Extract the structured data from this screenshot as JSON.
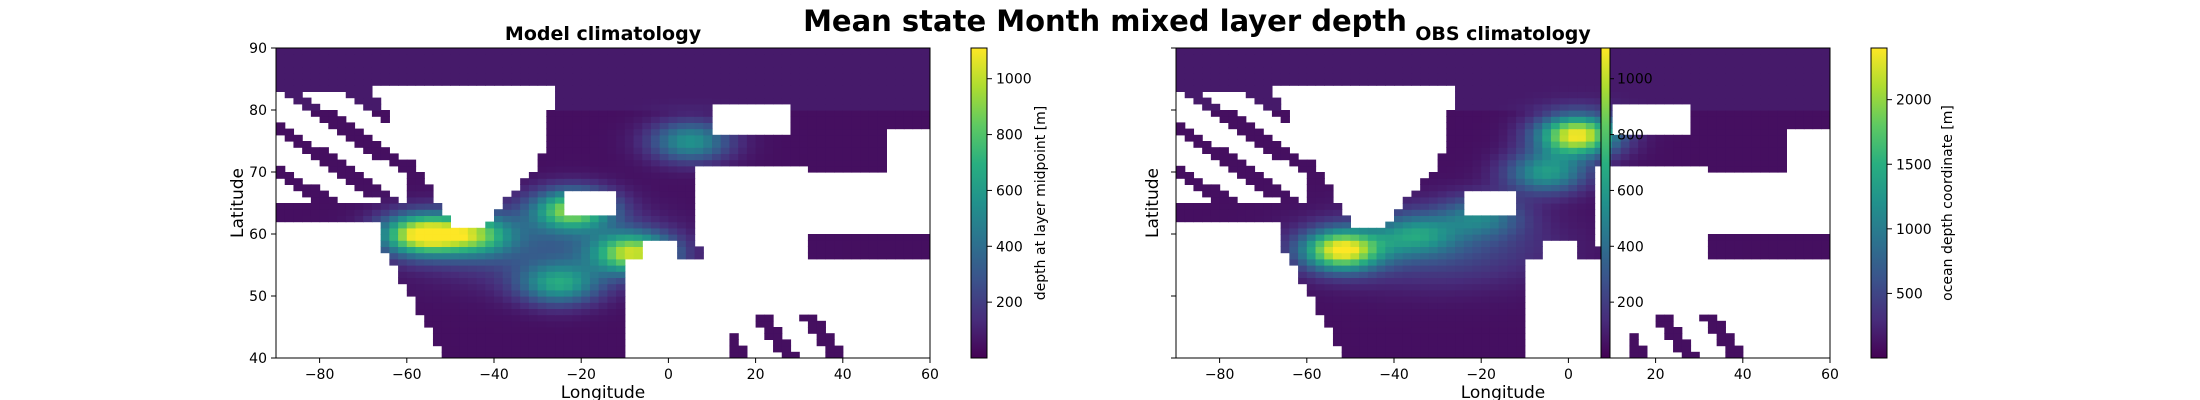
{
  "suptitle": "Mean state Month mixed layer depth",
  "chart_data": [
    {
      "type": "heatmap",
      "title": "Model climatology",
      "xlabel": "Longitude",
      "ylabel": "Latitude",
      "xlim": [
        -90,
        60
      ],
      "ylim": [
        40,
        90
      ],
      "xticks": [
        -80,
        -60,
        -40,
        -20,
        0,
        20,
        40,
        60
      ],
      "yticks": [
        40,
        50,
        60,
        70,
        80,
        90
      ],
      "colorbar": {
        "label": "depth at layer midpoint [m]",
        "range": [
          0,
          1110
        ],
        "ticks": [
          200,
          400,
          600,
          800,
          1000
        ],
        "colormap": "viridis"
      },
      "hotspots": [
        {
          "lon": -57,
          "lat": 60,
          "value": 1000
        },
        {
          "lon": -8,
          "lat": 57,
          "value": 900
        },
        {
          "lon": -22,
          "lat": 64,
          "value": 850
        },
        {
          "lon": -45,
          "lat": 60,
          "value": 700
        },
        {
          "lon": -25,
          "lat": 52,
          "value": 560
        },
        {
          "lon": 5,
          "lat": 75,
          "value": 520
        }
      ]
    },
    {
      "type": "heatmap",
      "title": "OBS climatology",
      "xlabel": "Longitude",
      "ylabel": "Latitude",
      "xlim": [
        -90,
        60
      ],
      "ylim": [
        40,
        90
      ],
      "xticks": [
        -80,
        -60,
        -40,
        -20,
        0,
        20,
        40,
        60
      ],
      "yticks": [
        40,
        50,
        60,
        70,
        80,
        90
      ],
      "colorbar": {
        "label": "ocean depth coordinate [m]",
        "range": [
          0,
          2400
        ],
        "ticks": [
          500,
          1000,
          1500,
          2000
        ],
        "colormap": "viridis"
      },
      "overlay_colorbar": {
        "range": [
          0,
          1110
        ],
        "ticks": [
          200,
          400,
          600,
          800,
          1000
        ]
      },
      "hotspots": [
        {
          "lon": -52,
          "lat": 57.5,
          "value": 2200
        },
        {
          "lon": 2,
          "lat": 76,
          "value": 2300
        },
        {
          "lon": -35,
          "lat": 60,
          "value": 900
        },
        {
          "lon": -20,
          "lat": 63,
          "value": 800
        },
        {
          "lon": -5,
          "lat": 70,
          "value": 1200
        }
      ]
    }
  ]
}
